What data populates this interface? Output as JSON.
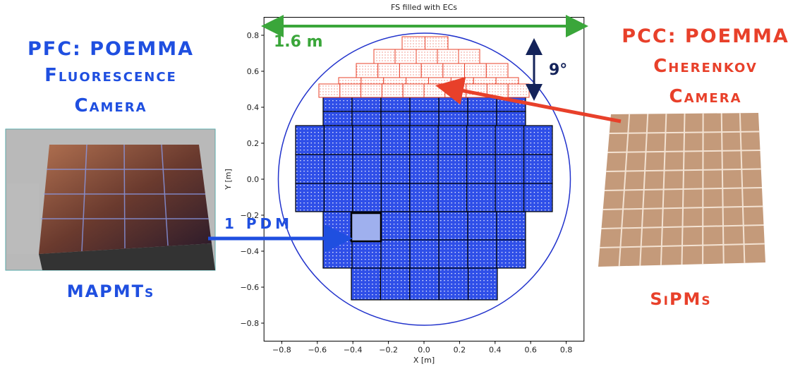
{
  "left_panel": {
    "title_lines": [
      "PFC: POEMMA",
      "Fluorescence",
      "Camera"
    ],
    "caption": "MAPMTs",
    "arrow_label": "1 PDM"
  },
  "right_panel": {
    "title_lines": [
      "PCC: POEMMA",
      "Cherenkov",
      "Camera"
    ],
    "caption": "SiPMs"
  },
  "chart_data": {
    "type": "detector",
    "title": "FS filled with ECs",
    "x_label": "X [m]",
    "y_label": "Y [m]",
    "xlim": [
      -0.9,
      0.9
    ],
    "ylim": [
      -0.9,
      0.9
    ],
    "xticks": [
      {
        "value": -0.8,
        "label": "−0.8"
      },
      {
        "value": -0.6,
        "label": "−0.6"
      },
      {
        "value": -0.4,
        "label": "−0.4"
      },
      {
        "value": -0.2,
        "label": "−0.2"
      },
      {
        "value": 0,
        "label": "0.0"
      },
      0.2,
      0.4,
      0.6,
      0.8
    ],
    "yticks": [
      {
        "value": -0.8,
        "label": "−0.8"
      },
      {
        "value": -0.6,
        "label": "−0.6"
      },
      {
        "value": -0.4,
        "label": "−0.4"
      },
      {
        "value": -0.2,
        "label": "−0.2"
      },
      {
        "value": 0,
        "label": "0.0"
      },
      0.2,
      0.4,
      0.6,
      0.8
    ],
    "annotations": {
      "width": "1.6 m",
      "angle": "9°"
    }
  }
}
